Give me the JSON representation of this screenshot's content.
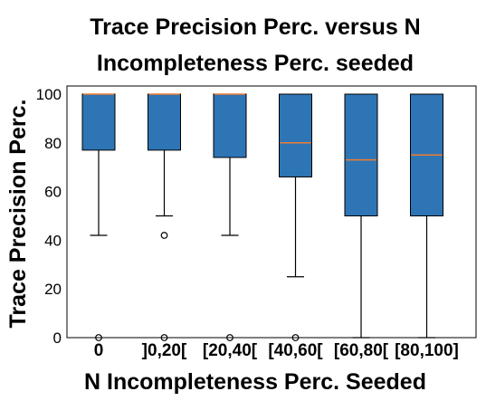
{
  "chart_data": {
    "type": "box",
    "title_line1": "Trace Precision Perc. versus N",
    "title_line2": "Incompleteness Perc. seeded",
    "xlabel": "N Incompleteness Perc. Seeded",
    "ylabel": "Trace Precision Perc.",
    "ylim": [
      0,
      100
    ],
    "yticks": [
      0,
      20,
      40,
      60,
      80,
      100
    ],
    "grid": false,
    "categories": [
      "0",
      "]0,20[",
      "[20,40[",
      "[40,60[",
      "[60,80[",
      "[80,100]"
    ],
    "boxes": [
      {
        "whisker_low": 42,
        "q1": 77,
        "median": 100,
        "q3": 100,
        "whisker_high": 100,
        "outliers": [
          0
        ]
      },
      {
        "whisker_low": 50,
        "q1": 77,
        "median": 100,
        "q3": 100,
        "whisker_high": 100,
        "outliers": [
          42,
          0
        ]
      },
      {
        "whisker_low": 42,
        "q1": 74,
        "median": 100,
        "q3": 100,
        "whisker_high": 100,
        "outliers": [
          0
        ]
      },
      {
        "whisker_low": 25,
        "q1": 66,
        "median": 80,
        "q3": 100,
        "whisker_high": 100,
        "outliers": [
          0
        ]
      },
      {
        "whisker_low": 0,
        "q1": 50,
        "median": 73,
        "q3": 100,
        "whisker_high": 100,
        "outliers": []
      },
      {
        "whisker_low": 0,
        "q1": 50,
        "median": 75,
        "q3": 100,
        "whisker_high": 100,
        "outliers": []
      }
    ],
    "colors": {
      "box_fill": "#2E75B6",
      "box_edge": "#000000",
      "median": "#ED7D31"
    }
  }
}
